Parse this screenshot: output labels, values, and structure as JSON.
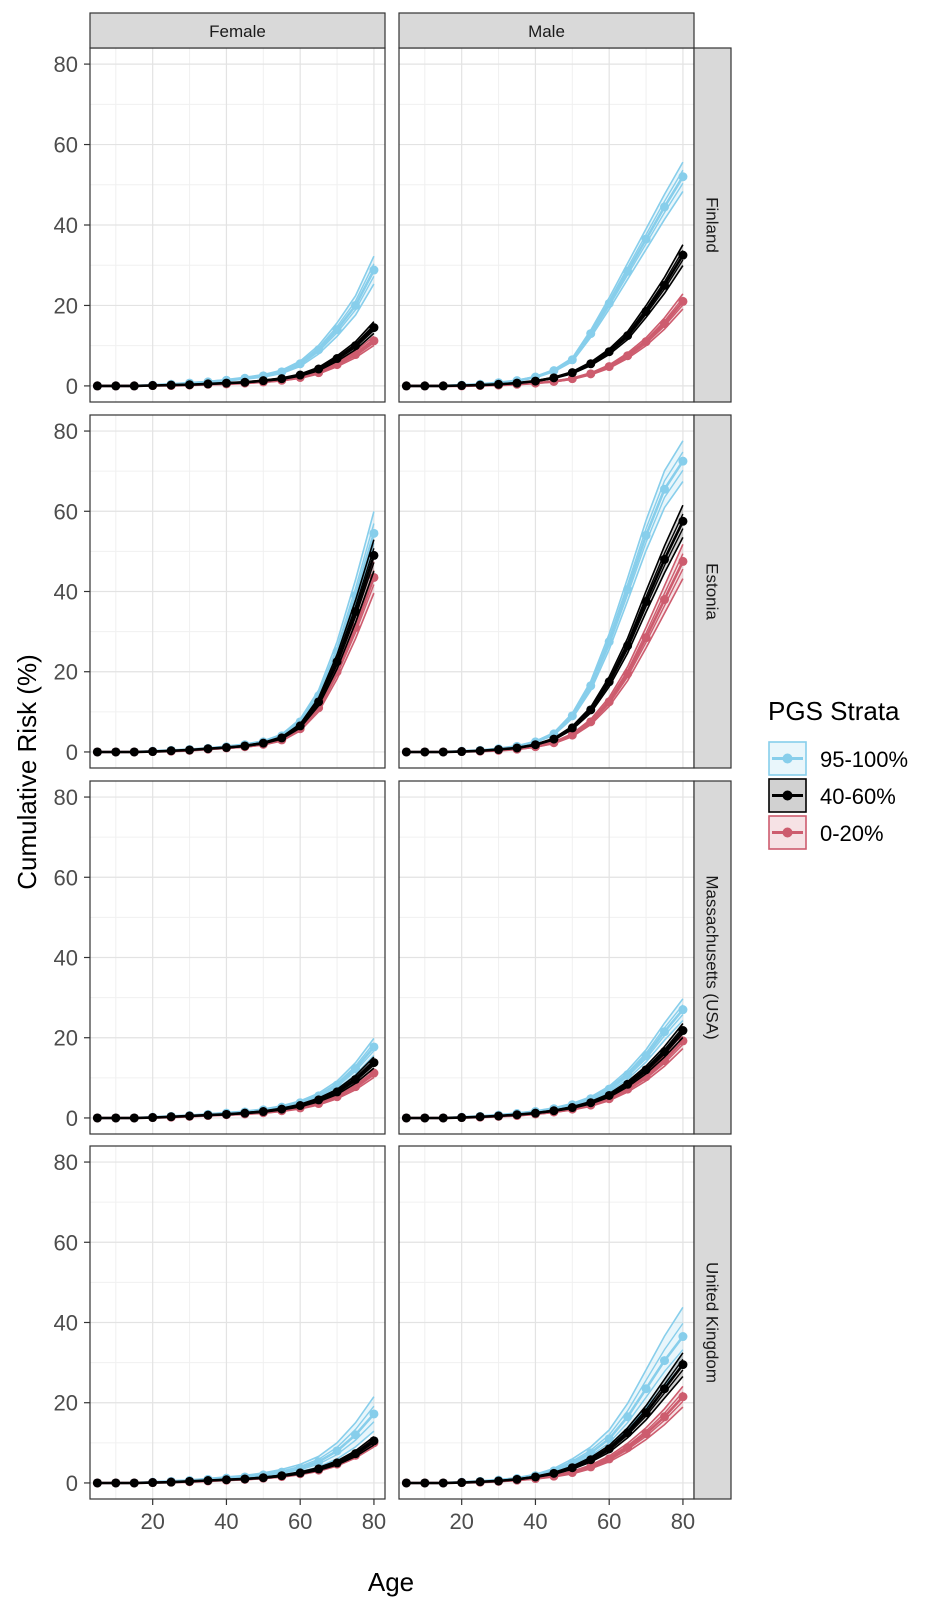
{
  "figure": {
    "xlabel": "Age",
    "ylabel": "Cumulative Risk (%)",
    "legend_title": "PGS Strata",
    "legend_placement": "right"
  },
  "chart_data": {
    "type": "line",
    "facet_columns": [
      "Female",
      "Male"
    ],
    "facet_rows": [
      "Finland",
      "Estonia",
      "Massachusetts (USA)",
      "United Kingdom"
    ],
    "xlabel": "Age",
    "ylabel": "Cumulative Risk (%)",
    "xlim": [
      3,
      83
    ],
    "ylim": [
      -4,
      84
    ],
    "x_ticks": [
      20,
      40,
      60,
      80
    ],
    "y_ticks": [
      0,
      20,
      40,
      60,
      80
    ],
    "grid": true,
    "x": [
      5,
      10,
      15,
      20,
      25,
      30,
      35,
      40,
      45,
      50,
      55,
      60,
      65,
      70,
      75,
      80
    ],
    "strata": [
      {
        "name": "95-100%",
        "color": "#87CEEB"
      },
      {
        "name": "40-60%",
        "color": "#000000"
      },
      {
        "name": "0-20%",
        "color": "#CD5C6E"
      }
    ],
    "panels": [
      {
        "row": "Finland",
        "col": "Female",
        "series": [
          {
            "name": "95-100%",
            "values": [
              0,
              0,
              0,
              0.2,
              0.4,
              0.7,
              1.0,
              1.4,
              1.9,
              2.5,
              3.5,
              5.5,
              9.0,
              14.0,
              20.0,
              28.8
            ],
            "ci": [
              0.12,
              0.12
            ]
          },
          {
            "name": "40-60%",
            "values": [
              0,
              0,
              0,
              0.1,
              0.2,
              0.3,
              0.5,
              0.7,
              0.9,
              1.3,
              1.8,
              2.7,
              4.2,
              6.8,
              10.0,
              14.5
            ],
            "ci": [
              0.1,
              0.1
            ]
          },
          {
            "name": "0-20%",
            "values": [
              0,
              0,
              0,
              0.1,
              0.1,
              0.2,
              0.4,
              0.5,
              0.7,
              1.0,
              1.4,
              2.1,
              3.3,
              5.3,
              7.8,
              11.2
            ],
            "ci": [
              0.1,
              0.1
            ]
          }
        ]
      },
      {
        "row": "Finland",
        "col": "Male",
        "series": [
          {
            "name": "95-100%",
            "values": [
              0,
              0,
              0,
              0.2,
              0.4,
              0.8,
              1.3,
              2.2,
              3.8,
              6.5,
              13.0,
              20.5,
              28.5,
              36.5,
              44.5,
              52.0
            ],
            "ci": [
              0.07,
              0.07
            ]
          },
          {
            "name": "40-60%",
            "values": [
              0,
              0,
              0,
              0.1,
              0.2,
              0.4,
              0.7,
              1.2,
              2.0,
              3.3,
              5.5,
              8.5,
              12.5,
              18.5,
              25.0,
              32.5
            ],
            "ci": [
              0.08,
              0.08
            ]
          },
          {
            "name": "0-20%",
            "values": [
              0,
              0,
              0,
              0,
              0.1,
              0.2,
              0.4,
              0.7,
              1.1,
              1.8,
              3.0,
              4.8,
              7.5,
              11.0,
              15.5,
              21.0
            ],
            "ci": [
              0.09,
              0.09
            ]
          }
        ]
      },
      {
        "row": "Estonia",
        "col": "Female",
        "series": [
          {
            "name": "95-100%",
            "values": [
              0,
              0,
              0,
              0.2,
              0.4,
              0.6,
              0.9,
              1.3,
              1.8,
              2.5,
              4.0,
              7.5,
              14.0,
              25.0,
              39.0,
              54.5
            ],
            "ci": [
              0.1,
              0.1
            ]
          },
          {
            "name": "40-60%",
            "values": [
              0,
              0,
              0,
              0.1,
              0.3,
              0.5,
              0.8,
              1.1,
              1.5,
              2.2,
              3.5,
              6.5,
              12.5,
              22.5,
              35.0,
              49.0
            ],
            "ci": [
              0.08,
              0.08
            ]
          },
          {
            "name": "0-20%",
            "values": [
              0,
              0,
              0,
              0.1,
              0.2,
              0.4,
              0.7,
              1.0,
              1.3,
              1.9,
              3.0,
              5.8,
              11.0,
              20.0,
              31.0,
              43.5
            ],
            "ci": [
              0.09,
              0.09
            ]
          }
        ]
      },
      {
        "row": "Estonia",
        "col": "Male",
        "series": [
          {
            "name": "95-100%",
            "values": [
              0,
              0,
              0,
              0.2,
              0.4,
              0.8,
              1.4,
              2.5,
              4.5,
              9.0,
              16.5,
              27.5,
              40.5,
              54.0,
              65.5,
              72.5
            ],
            "ci": [
              0.07,
              0.07
            ]
          },
          {
            "name": "40-60%",
            "values": [
              0,
              0,
              0,
              0.1,
              0.3,
              0.6,
              1.0,
              1.8,
              3.2,
              6.0,
              10.5,
              17.5,
              26.5,
              37.5,
              48.0,
              57.5
            ],
            "ci": [
              0.07,
              0.07
            ]
          },
          {
            "name": "0-20%",
            "values": [
              0,
              0,
              0,
              0.1,
              0.2,
              0.4,
              0.7,
              1.3,
              2.3,
              4.2,
              7.5,
              12.5,
              19.5,
              28.5,
              38.0,
              47.5
            ],
            "ci": [
              0.09,
              0.09
            ]
          }
        ]
      },
      {
        "row": "Massachusetts (USA)",
        "col": "Female",
        "series": [
          {
            "name": "95-100%",
            "values": [
              0,
              0,
              0,
              0.2,
              0.4,
              0.6,
              0.9,
              1.2,
              1.5,
              2.0,
              2.7,
              3.8,
              5.5,
              8.2,
              12.3,
              17.7
            ],
            "ci": [
              0.12,
              0.12
            ]
          },
          {
            "name": "40-60%",
            "values": [
              0,
              0,
              0,
              0.1,
              0.3,
              0.5,
              0.7,
              0.9,
              1.2,
              1.6,
              2.2,
              3.1,
              4.5,
              6.5,
              9.6,
              13.8
            ],
            "ci": [
              0.1,
              0.1
            ]
          },
          {
            "name": "0-20%",
            "values": [
              0,
              0,
              0,
              0.1,
              0.2,
              0.4,
              0.6,
              0.8,
              1.0,
              1.3,
              1.8,
              2.5,
              3.6,
              5.3,
              7.8,
              11.2
            ],
            "ci": [
              0.1,
              0.1
            ]
          }
        ]
      },
      {
        "row": "Massachusetts (USA)",
        "col": "Male",
        "series": [
          {
            "name": "95-100%",
            "values": [
              0,
              0,
              0,
              0.2,
              0.4,
              0.7,
              1.1,
              1.6,
              2.3,
              3.3,
              4.8,
              7.2,
              10.8,
              15.5,
              21.5,
              27.0
            ],
            "ci": [
              0.1,
              0.1
            ]
          },
          {
            "name": "40-60%",
            "values": [
              0,
              0,
              0,
              0.1,
              0.3,
              0.5,
              0.8,
              1.2,
              1.8,
              2.6,
              3.8,
              5.6,
              8.4,
              12.0,
              16.5,
              21.8
            ],
            "ci": [
              0.08,
              0.08
            ]
          },
          {
            "name": "0-20%",
            "values": [
              0,
              0,
              0,
              0.1,
              0.2,
              0.4,
              0.6,
              1.0,
              1.5,
              2.2,
              3.2,
              4.8,
              7.2,
              10.3,
              14.3,
              19.2
            ],
            "ci": [
              0.1,
              0.1
            ]
          }
        ]
      },
      {
        "row": "United Kingdom",
        "col": "Female",
        "series": [
          {
            "name": "95-100%",
            "values": [
              0,
              0,
              0,
              0.2,
              0.4,
              0.6,
              0.9,
              1.2,
              1.5,
              2.0,
              2.7,
              3.7,
              5.3,
              8.0,
              12.0,
              17.2
            ],
            "ci": [
              0.25,
              0.25
            ]
          },
          {
            "name": "40-60%",
            "values": [
              0,
              0,
              0,
              0.1,
              0.2,
              0.4,
              0.6,
              0.8,
              1.0,
              1.3,
              1.8,
              2.5,
              3.5,
              5.0,
              7.3,
              10.5
            ],
            "ci": [
              0.1,
              0.1
            ]
          },
          {
            "name": "0-20%",
            "values": [
              0,
              0,
              0,
              0.1,
              0.2,
              0.3,
              0.5,
              0.7,
              0.9,
              1.2,
              1.6,
              2.3,
              3.2,
              4.7,
              6.9,
              10.0
            ],
            "ci": [
              0.1,
              0.1
            ]
          }
        ]
      },
      {
        "row": "United Kingdom",
        "col": "Male",
        "series": [
          {
            "name": "95-100%",
            "values": [
              0,
              0,
              0,
              0.2,
              0.4,
              0.7,
              1.1,
              1.8,
              3.0,
              5.0,
              7.5,
              11.0,
              16.5,
              23.5,
              30.5,
              36.5
            ],
            "ci": [
              0.2,
              0.2
            ]
          },
          {
            "name": "40-60%",
            "values": [
              0,
              0,
              0,
              0.1,
              0.3,
              0.5,
              0.9,
              1.5,
              2.4,
              3.8,
              5.8,
              8.5,
              12.5,
              17.5,
              23.5,
              29.5
            ],
            "ci": [
              0.1,
              0.1
            ]
          },
          {
            "name": "0-20%",
            "values": [
              0,
              0,
              0,
              0.1,
              0.2,
              0.4,
              0.7,
              1.1,
              1.7,
              2.6,
              4.0,
              6.0,
              8.8,
              12.3,
              16.5,
              21.5
            ],
            "ci": [
              0.12,
              0.12
            ]
          }
        ]
      }
    ]
  }
}
